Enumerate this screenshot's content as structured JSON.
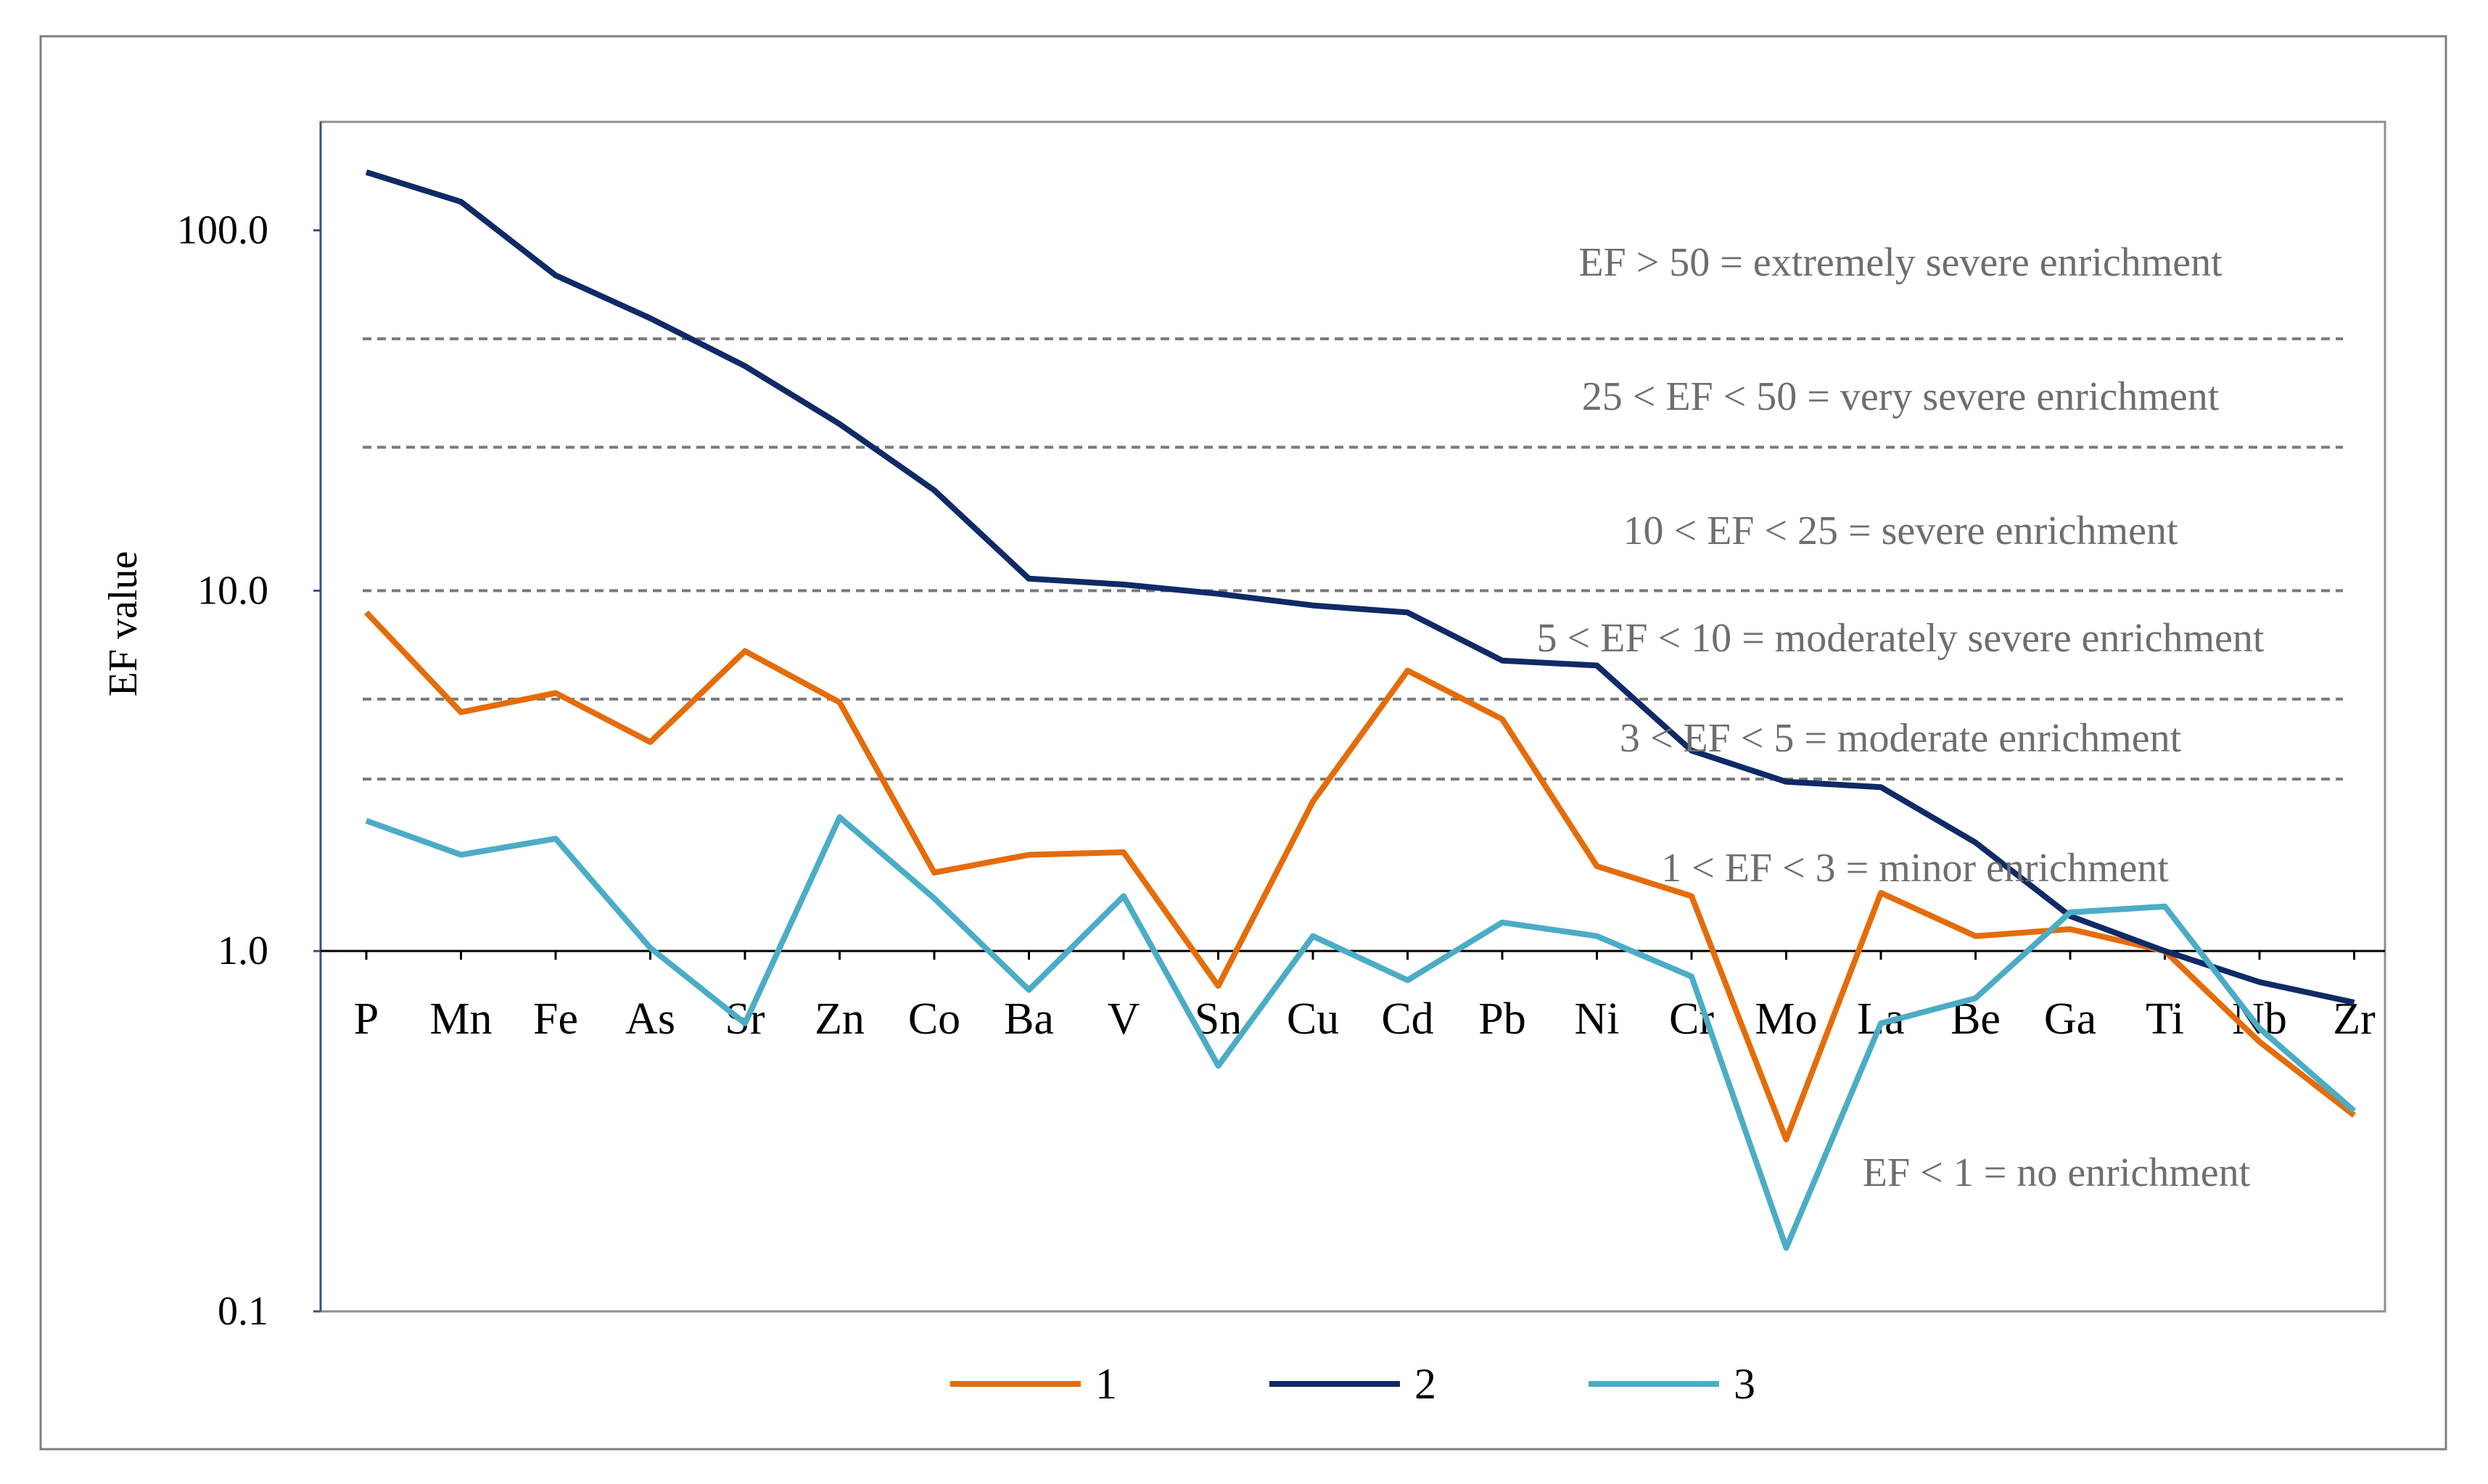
{
  "chart_data": {
    "type": "line",
    "scale": "log",
    "ylabel": "EF value",
    "xlabel": "",
    "ylim": [
      0.1,
      200
    ],
    "yticks": [
      {
        "value": 0.1,
        "label": "0.1"
      },
      {
        "value": 1,
        "label": "1.0"
      },
      {
        "value": 10,
        "label": "10.0"
      },
      {
        "value": 100,
        "label": "100.0"
      }
    ],
    "categories": [
      "P",
      "Mn",
      "Fe",
      "As",
      "Sr",
      "Zn",
      "Co",
      "Ba",
      "V",
      "Sn",
      "Cu",
      "Cd",
      "Pb",
      "Ni",
      "Cr",
      "Mo",
      "La",
      "Be",
      "Ga",
      "Ti",
      "Nb",
      "Zr"
    ],
    "series": [
      {
        "name": "1",
        "color": "#E46C0A",
        "values": [
          8.7,
          4.6,
          5.2,
          3.8,
          6.8,
          4.9,
          1.65,
          1.85,
          1.88,
          0.8,
          2.6,
          6.0,
          4.4,
          1.72,
          1.42,
          0.3,
          1.45,
          1.1,
          1.15,
          1.0,
          0.56,
          0.35
        ]
      },
      {
        "name": "2",
        "color": "#0F2A66",
        "values": [
          145,
          120,
          75,
          57,
          42,
          29,
          19,
          10.8,
          10.4,
          9.8,
          9.1,
          8.7,
          6.4,
          6.2,
          3.6,
          2.95,
          2.85,
          2.0,
          1.25,
          1.0,
          0.82,
          0.72
        ]
      },
      {
        "name": "3",
        "color": "#4BACC6",
        "values": [
          2.3,
          1.85,
          2.05,
          1.02,
          0.63,
          2.35,
          1.4,
          0.78,
          1.42,
          0.48,
          1.1,
          0.83,
          1.2,
          1.1,
          0.85,
          0.15,
          0.63,
          0.74,
          1.28,
          1.33,
          0.61,
          0.36
        ]
      }
    ],
    "thresholds": [
      {
        "value": 50,
        "label": "EF > 50 = extremely severe enrichment"
      },
      {
        "value": 25,
        "label": "25 < EF < 50 = very severe enrichment"
      },
      {
        "value": 10,
        "label": "10 < EF < 25 = severe enrichment"
      },
      {
        "value": 5,
        "label": "5 < EF < 10 = moderately severe enrichment"
      },
      {
        "value": 3,
        "label": "3 < EF < 5 = moderate enrichment"
      },
      {
        "value": 1,
        "label": "1 < EF < 3 = minor enrichment"
      },
      {
        "value": 0.1,
        "label": "EF < 1 = no enrichment"
      }
    ],
    "legend_position": "bottom",
    "grid": false
  }
}
